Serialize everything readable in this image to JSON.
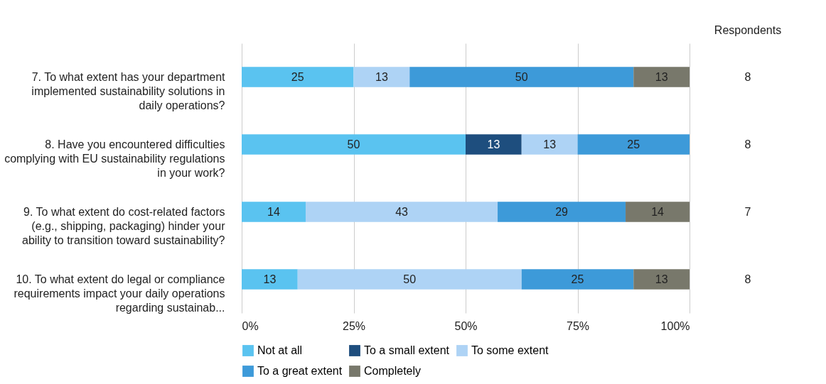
{
  "chart_data": {
    "type": "bar",
    "orientation": "horizontal",
    "stacked": true,
    "categories": [
      "7. To what extent has your department implemented sustainability solutions in daily operations?",
      "8. Have you encountered difficulties complying with EU sustainability regulations in your work?",
      "9. To what extent do cost-related factors (e.g., shipping, packaging) hinder your ability to transition toward sustainability?",
      "10. To what extent do legal or compliance requirements impact your daily operations regarding sustainab..."
    ],
    "series": [
      {
        "name": "Not at all",
        "color": "#5ac3f0",
        "values": [
          25,
          50,
          14.29,
          12.5
        ],
        "value_labels": [
          "25",
          "50",
          "14",
          "13"
        ]
      },
      {
        "name": "To a small extent",
        "color": "#1e4e7e",
        "values": [
          null,
          12.5,
          null,
          null
        ],
        "value_labels": [
          null,
          "13",
          null,
          null
        ]
      },
      {
        "name": "To some extent",
        "color": "#aed3f5",
        "values": [
          12.5,
          12.5,
          42.86,
          50
        ],
        "value_labels": [
          "13",
          "13",
          "43",
          "50"
        ]
      },
      {
        "name": "To a great extent",
        "color": "#3d9ad9",
        "values": [
          50,
          25,
          28.57,
          25
        ],
        "value_labels": [
          "50",
          "25",
          "29",
          "25"
        ]
      },
      {
        "name": "Completely",
        "color": "#78786b",
        "values": [
          12.5,
          null,
          14.29,
          12.5
        ],
        "value_labels": [
          "13",
          null,
          "14",
          "13"
        ]
      }
    ],
    "xlim": [
      0,
      100
    ],
    "xticks": [
      {
        "value": 0,
        "label": "0%"
      },
      {
        "value": 25,
        "label": "25%"
      },
      {
        "value": 50,
        "label": "50%"
      },
      {
        "value": 75,
        "label": "75%"
      },
      {
        "value": 100,
        "label": "100%"
      }
    ],
    "grid": "x",
    "legend": "bottom",
    "annotations": [
      "Respondents",
      "8",
      "8",
      "7",
      "8"
    ]
  }
}
